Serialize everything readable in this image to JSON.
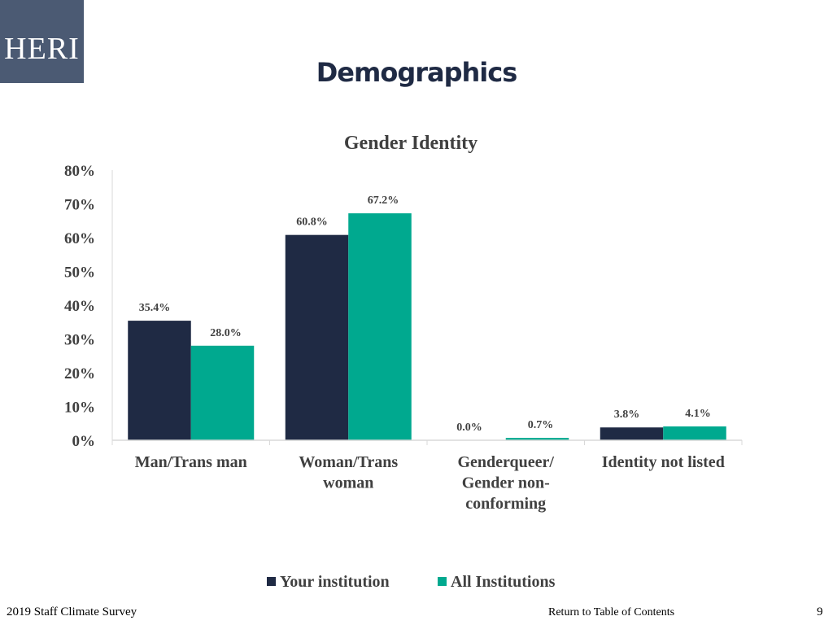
{
  "logo": {
    "text": "HERI",
    "color": "#4b5a73"
  },
  "slide": {
    "title": "Demographics"
  },
  "chart_data": {
    "type": "bar",
    "title": "Gender Identity",
    "categories": [
      "Man/Trans man",
      "Woman/Trans woman",
      "Genderqueer/ Gender non-conforming",
      "Identity not listed"
    ],
    "category_lines": [
      [
        "Man/Trans man"
      ],
      [
        "Woman/Trans",
        "woman"
      ],
      [
        "Genderqueer/",
        "Gender non-",
        "conforming"
      ],
      [
        "Identity not listed"
      ]
    ],
    "series": [
      {
        "name": "Your institution",
        "values": [
          35.4,
          60.8,
          0.0,
          3.8
        ],
        "labels": [
          "35.4%",
          "60.8%",
          "0.0%",
          "3.8%"
        ],
        "color": "#1f2a44"
      },
      {
        "name": "All Institutions",
        "values": [
          28.0,
          67.2,
          0.7,
          4.1
        ],
        "labels": [
          "28.0%",
          "67.2%",
          "0.7%",
          "4.1%"
        ],
        "color": "#00a98f"
      }
    ],
    "ylim": [
      0,
      80
    ],
    "yticks": [
      "0%",
      "10%",
      "20%",
      "30%",
      "40%",
      "50%",
      "60%",
      "70%",
      "80%"
    ],
    "xlabel": "",
    "ylabel": "",
    "grid": false,
    "legend_position": "bottom"
  },
  "footer": {
    "survey": "2019 Staff Climate Survey",
    "link": "Return to Table of Contents",
    "page": "9"
  }
}
